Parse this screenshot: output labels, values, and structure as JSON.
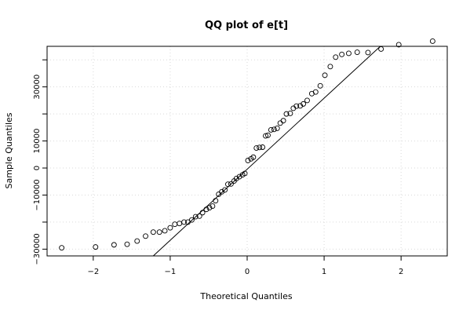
{
  "chart_data": {
    "type": "scatter",
    "title": "QQ plot of e[t]",
    "xlabel": "Theoretical Quantiles",
    "ylabel": "Sample Quantiles",
    "xlim": [
      -2.6,
      2.6
    ],
    "ylim": [
      -32500,
      45000
    ],
    "grid": true,
    "x_ticks": [
      -2,
      -1,
      0,
      1,
      2
    ],
    "x_tick_labels": [
      "−2",
      "−1",
      "0",
      "1",
      "2"
    ],
    "y_ticks": [
      -30000,
      -20000,
      -10000,
      0,
      10000,
      20000,
      30000,
      40000
    ],
    "y_tick_labels": [
      "−30000",
      "",
      "−10000",
      "0",
      "10000",
      "",
      "30000",
      ""
    ],
    "x": [
      -2.41,
      -1.97,
      -1.73,
      -1.56,
      -1.43,
      -1.32,
      -1.22,
      -1.14,
      -1.07,
      -1.0,
      -0.94,
      -0.88,
      -0.82,
      -0.77,
      -0.72,
      -0.67,
      -0.62,
      -0.58,
      -0.53,
      -0.49,
      -0.45,
      -0.41,
      -0.37,
      -0.33,
      -0.29,
      -0.25,
      -0.21,
      -0.17,
      -0.14,
      -0.1,
      -0.06,
      -0.03,
      0.01,
      0.05,
      0.08,
      0.12,
      0.16,
      0.2,
      0.24,
      0.27,
      0.31,
      0.35,
      0.39,
      0.43,
      0.47,
      0.51,
      0.56,
      0.6,
      0.64,
      0.69,
      0.73,
      0.78,
      0.84,
      0.89,
      0.95,
      1.01,
      1.08,
      1.15,
      1.23,
      1.32,
      1.43,
      1.57,
      1.74,
      1.97,
      2.41
    ],
    "y": [
      -29500,
      -29200,
      -28400,
      -28200,
      -27000,
      -25200,
      -23700,
      -23700,
      -23200,
      -22100,
      -20800,
      -20500,
      -20000,
      -20000,
      -19200,
      -18000,
      -17800,
      -16500,
      -15300,
      -14700,
      -14100,
      -12100,
      -9700,
      -8800,
      -8100,
      -6000,
      -5900,
      -4800,
      -3900,
      -3200,
      -2500,
      -2000,
      2800,
      3400,
      4000,
      7400,
      7600,
      7700,
      11900,
      12100,
      14100,
      14300,
      14700,
      16600,
      17500,
      20000,
      20200,
      22100,
      22900,
      23000,
      23700,
      25000,
      27500,
      28100,
      30400,
      34300,
      37500,
      41000,
      42000,
      42400,
      42800,
      42700,
      44000,
      45600,
      46900
    ],
    "reference_line": {
      "x": [
        -1.22,
        1.73
      ],
      "y": [
        -32500,
        45000
      ]
    }
  }
}
